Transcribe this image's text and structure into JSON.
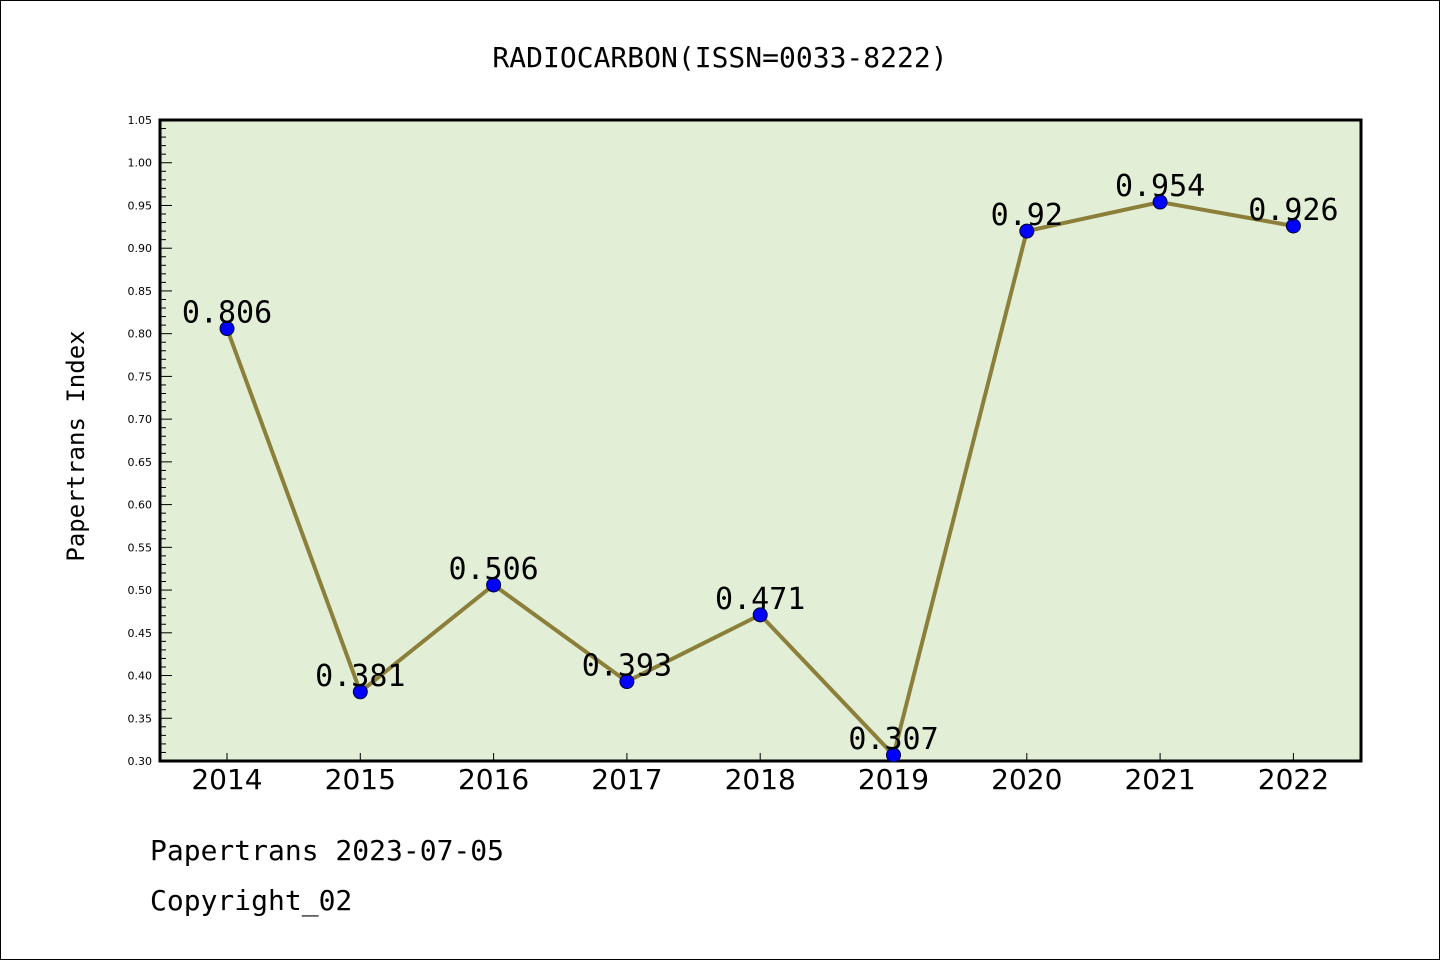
{
  "chart_data": {
    "type": "line",
    "title": "RADIOCARBON(ISSN=0033-8222)",
    "ylabel": "Papertrans Index",
    "xlabel": "",
    "categories": [
      "2014",
      "2015",
      "2016",
      "2017",
      "2018",
      "2019",
      "2020",
      "2021",
      "2022"
    ],
    "values": [
      0.806,
      0.381,
      0.506,
      0.393,
      0.471,
      0.307,
      0.92,
      0.954,
      0.926
    ],
    "value_labels": [
      "0.806",
      "0.381",
      "0.506",
      "0.393",
      "0.471",
      "0.307",
      "0.92",
      "0.954",
      "0.926"
    ],
    "ylim": [
      0.3,
      1.05
    ],
    "yticks": [
      "0.30",
      "0.35",
      "0.40",
      "0.45",
      "0.50",
      "0.55",
      "0.60",
      "0.65",
      "0.70",
      "0.75",
      "0.80",
      "0.85",
      "0.90",
      "0.95",
      "1.00",
      "1.05"
    ],
    "grid": false,
    "line_color": "#8b7f3a",
    "marker_color": "#0000ff",
    "plot_background": "#e2efd6"
  },
  "footer": {
    "line1": "Papertrans 2023-07-05",
    "line2": "Copyright_02"
  }
}
